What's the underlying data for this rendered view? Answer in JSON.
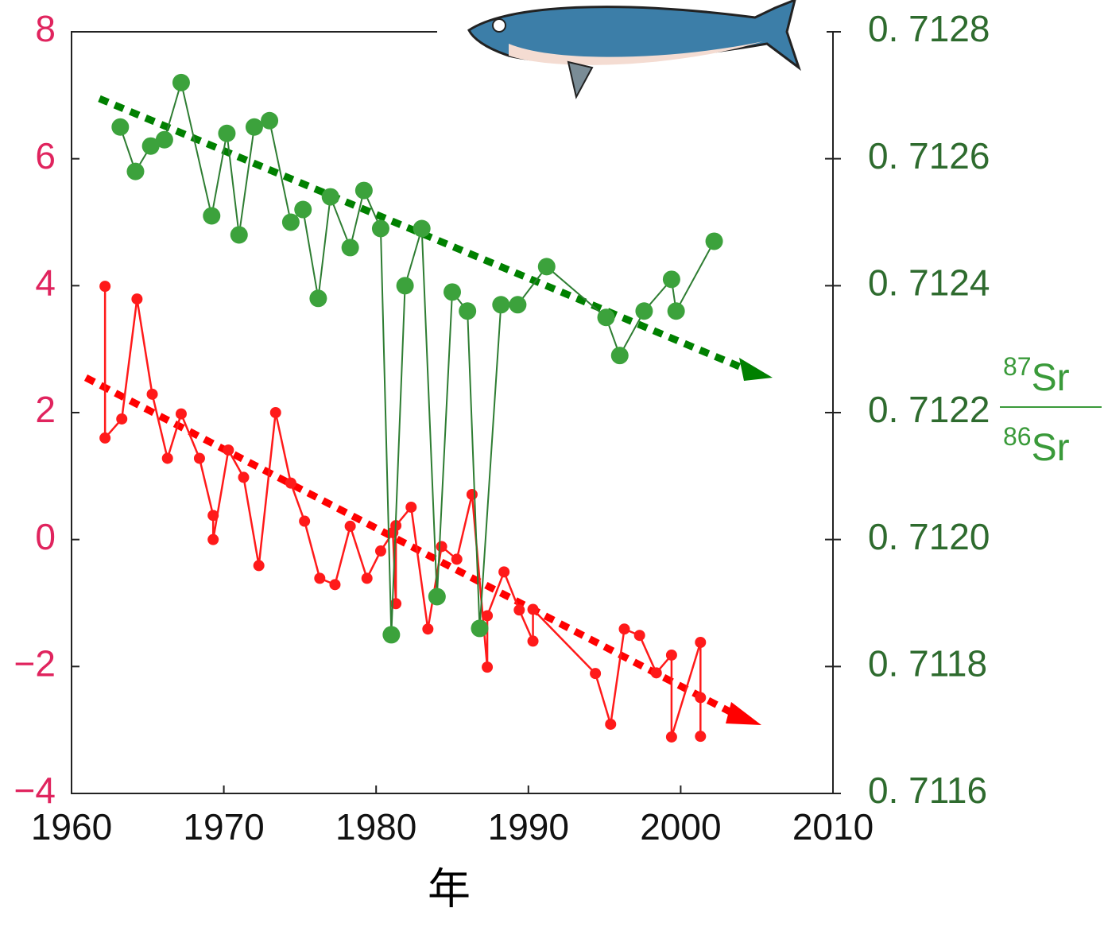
{
  "chart_data": {
    "type": "line",
    "xlabel": "年",
    "y2label": {
      "numerator": [
        "87",
        "Sr"
      ],
      "denominator": [
        "86",
        "Sr"
      ]
    },
    "xlim": [
      1960,
      2010
    ],
    "xticks": [
      1960,
      1970,
      1980,
      1990,
      2000,
      2010
    ],
    "ylim": [
      -4,
      8
    ],
    "yticks": [
      {
        "value": -4,
        "label": "−4"
      },
      {
        "value": -2,
        "label": "−2"
      },
      0,
      2,
      4,
      6,
      8
    ],
    "y2lim": [
      0.7116,
      0.7128
    ],
    "y2ticks": [
      {
        "value": 0.7116,
        "label": "0. 7116"
      },
      {
        "value": 0.7118,
        "label": "0. 7118"
      },
      {
        "value": 0.712,
        "label": "0. 7120"
      },
      {
        "value": 0.7122,
        "label": "0. 7122"
      },
      {
        "value": 0.7124,
        "label": "0. 7124"
      },
      {
        "value": 0.7126,
        "label": "0. 7126"
      },
      {
        "value": 0.7128,
        "label": "0. 7128"
      }
    ],
    "series": [
      {
        "color": "#ff1a1a",
        "axis": "y",
        "x": [
          1962.2,
          1962.2,
          1963.3,
          1964.3,
          1965.3,
          1966.3,
          1967.2,
          1968.4,
          1969.3,
          1969.3,
          1970.3,
          1971.3,
          1972.3,
          1973.4,
          1974.4,
          1975.3,
          1976.3,
          1977.3,
          1978.3,
          1979.4,
          1980.3,
          1981.1,
          1981.3,
          1981.3,
          1982.3,
          1983.4,
          1984.3,
          1985.3,
          1986.3,
          1987.3,
          1987.3,
          1988.4,
          1989.4,
          1990.3,
          1990.3,
          1994.4,
          1995.4,
          1996.3,
          1997.3,
          1998.4,
          1999.4,
          1999.4,
          2001.3,
          2001.3,
          2001.3
        ],
        "values": [
          3.99,
          1.6,
          1.9,
          3.79,
          2.29,
          1.28,
          1.98,
          1.28,
          0.38,
          0,
          1.41,
          0.98,
          -0.41,
          2.0,
          0.89,
          0.29,
          -0.61,
          -0.71,
          0.21,
          -0.61,
          -0.18,
          0.11,
          -1.01,
          0.22,
          0.51,
          -1.41,
          -0.11,
          -0.31,
          0.71,
          -2.01,
          -1.2,
          -0.51,
          -1.11,
          -1.6,
          -1.1,
          -2.11,
          -2.91,
          -1.41,
          -1.51,
          -2.1,
          -1.82,
          -3.11,
          -1.62,
          -3.1,
          -2.49
        ]
      },
      {
        "color": "#3ca23c",
        "line_color": "#2e7d32",
        "axis": "y2",
        "x": [
          1963.2,
          1964.2,
          1965.2,
          1966.1,
          1967.2,
          1969.2,
          1970.2,
          1971.0,
          1972.0,
          1973.0,
          1974.4,
          1975.2,
          1976.2,
          1977.0,
          1978.3,
          1979.2,
          1980.3,
          1981.0,
          1981.9,
          1983.0,
          1984.0,
          1985.0,
          1986.0,
          1986.8,
          1988.2,
          1989.3,
          1991.2,
          1995.1,
          1996.0,
          1997.6,
          1999.4,
          1999.7,
          2002.2
        ],
        "values": [
          0.71265,
          0.71258,
          0.71262,
          0.71263,
          0.71272,
          0.71251,
          0.71264,
          0.71248,
          0.71265,
          0.71266,
          0.7125,
          0.71252,
          0.71238,
          0.71254,
          0.71246,
          0.71255,
          0.71249,
          0.71185,
          0.7124,
          0.71249,
          0.71191,
          0.71239,
          0.71236,
          0.71186,
          0.71237,
          0.71237,
          0.71243,
          0.71235,
          0.71229,
          0.71236,
          0.71241,
          0.71236,
          0.71247
        ]
      }
    ]
  }
}
